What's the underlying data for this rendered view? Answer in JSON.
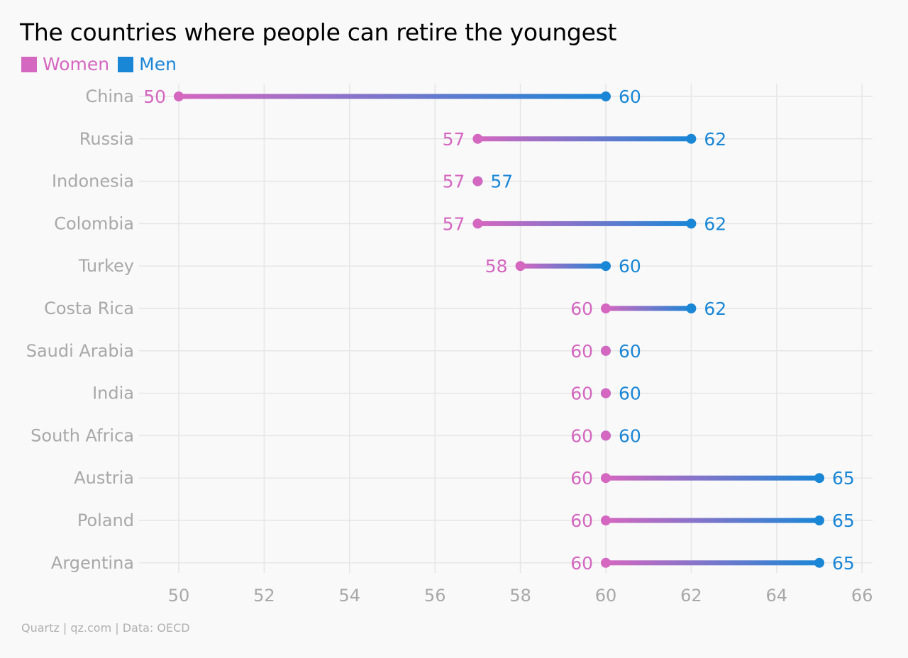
{
  "title": "The countries where people can retire the youngest",
  "source": "Quartz | qz.com | Data: OECD",
  "colors": {
    "women": "#d467c0",
    "men": "#1a86d6",
    "grid": "#e6e6e6",
    "axis_text": "#a8a8a8"
  },
  "chart_data": {
    "type": "dumbbell",
    "title": "The countries where people can retire the youngest",
    "legend": {
      "placement": "top-left"
    },
    "series": [
      {
        "name": "Women",
        "color": "#d467c0"
      },
      {
        "name": "Men",
        "color": "#1a86d6"
      }
    ],
    "categories": [
      "China",
      "Russia",
      "Indonesia",
      "Colombia",
      "Turkey",
      "Costa Rica",
      "Saudi Arabia",
      "India",
      "South Africa",
      "Austria",
      "Poland",
      "Argentina"
    ],
    "women": [
      50,
      57,
      57,
      57,
      58,
      60,
      60,
      60,
      60,
      60,
      60,
      60
    ],
    "men": [
      60,
      62,
      57,
      62,
      60,
      62,
      60,
      60,
      60,
      65,
      65,
      65
    ],
    "xticks": [
      50,
      52,
      54,
      56,
      58,
      60,
      62,
      64,
      66
    ],
    "xlim": [
      49,
      66.2
    ],
    "grid": true
  }
}
